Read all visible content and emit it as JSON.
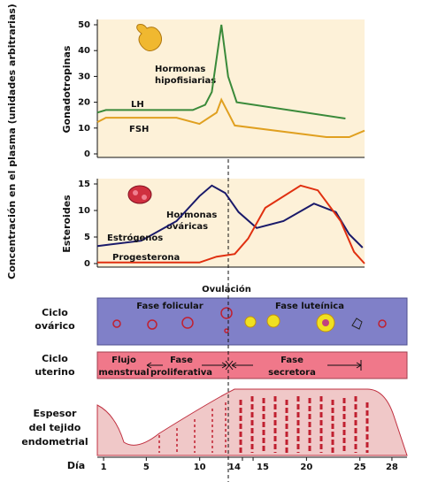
{
  "y_axis_label": "Concentración en el plasma (unidades arbitrarias)",
  "chart_data": [
    {
      "type": "line",
      "ylabel": "Gonadotropinas",
      "annotation": [
        "Hormonas",
        "hipofisiarias"
      ],
      "xlim": [
        0,
        28
      ],
      "ylim": [
        0,
        50
      ],
      "yticks": [
        0,
        10,
        20,
        30,
        40,
        50
      ],
      "background": "#fdf1d8",
      "series": [
        {
          "name": "LH",
          "color": "#3a8a3a",
          "x": [
            0,
            0.9,
            10,
            11.3,
            12,
            13,
            13.7,
            14.6,
            26
          ],
          "values": [
            16,
            17,
            17,
            19,
            24,
            50,
            30,
            20,
            13.7
          ]
        },
        {
          "name": "FSH",
          "color": "#e0a020",
          "x": [
            0,
            0.9,
            8.3,
            10.7,
            12.5,
            13,
            13.7,
            14.4,
            24,
            26.4,
            28
          ],
          "values": [
            12.3,
            14,
            14,
            11.6,
            16,
            21,
            16,
            11,
            6.5,
            6.5,
            9
          ]
        }
      ]
    },
    {
      "type": "line",
      "ylabel": "Esteroides",
      "annotation": [
        "Hormonas",
        "ováricas"
      ],
      "xlim": [
        0,
        28
      ],
      "ylim": [
        0,
        15
      ],
      "yticks": [
        0,
        5,
        10,
        15
      ],
      "background": "#fdf1d8",
      "series": [
        {
          "name": "Estrógenos",
          "color": "#1a1a6a",
          "x": [
            0,
            4.6,
            8.3,
            10.7,
            12,
            13.4,
            14.8,
            16.7,
            19.5,
            22.7,
            25,
            26.4,
            27.8
          ],
          "values": [
            3.3,
            4.3,
            8,
            12.7,
            14.7,
            13.3,
            9.7,
            6.7,
            8,
            11.3,
            9.7,
            5.5,
            3
          ]
        },
        {
          "name": "Progesterona",
          "color": "#e03010",
          "x": [
            0,
            10.7,
            12.5,
            14.4,
            15.8,
            17.6,
            21.3,
            23.1,
            25.5,
            26.9,
            28
          ],
          "values": [
            0.2,
            0.2,
            1.3,
            1.8,
            4.7,
            10.5,
            14.7,
            13.8,
            8,
            2.2,
            0
          ]
        }
      ]
    }
  ],
  "ovulation_label": "Ovulación",
  "ovarian": {
    "label": [
      "Ciclo",
      "ovárico"
    ],
    "phases": [
      "Fase folicular",
      "Fase luteínica"
    ]
  },
  "uterine": {
    "label": [
      "Ciclo",
      "uterino"
    ],
    "phases": [
      [
        "Flujo",
        "menstrual"
      ],
      [
        "Fase",
        "proliferativa"
      ],
      [
        "Fase",
        "secretora"
      ]
    ]
  },
  "endometrium": {
    "label": [
      "Espesor",
      "del tejido",
      "endometrial"
    ]
  },
  "day_axis": {
    "label": "Día",
    "xlim": [
      0,
      29
    ],
    "xticks": [
      1,
      5,
      10,
      14,
      15,
      20,
      25,
      28
    ]
  }
}
